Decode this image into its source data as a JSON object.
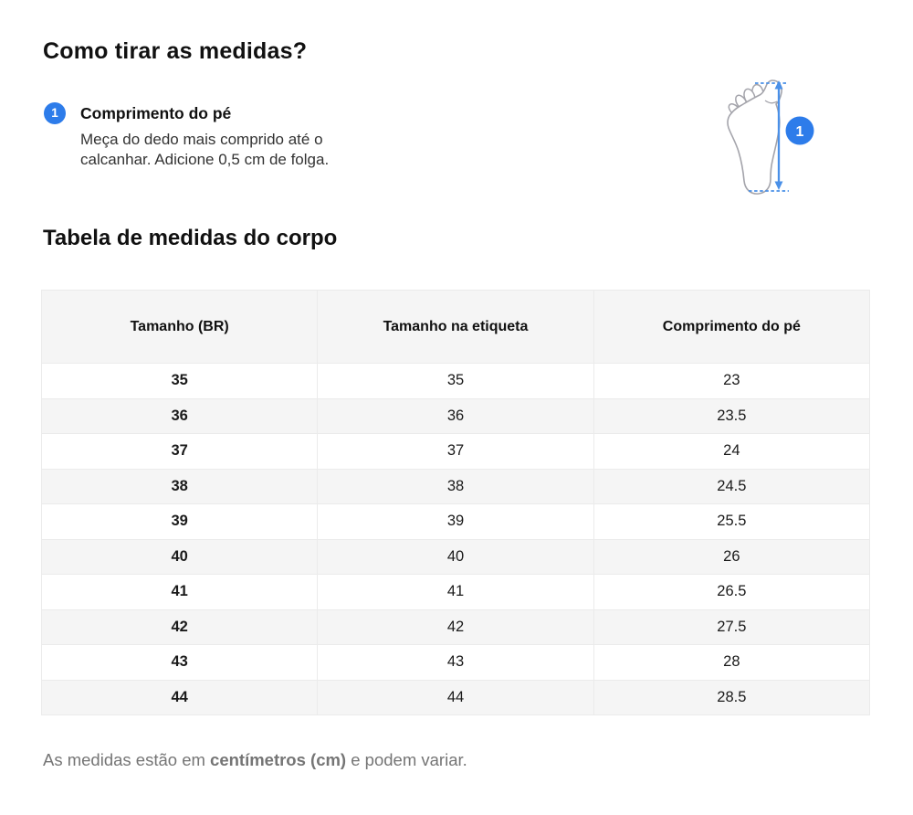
{
  "header": {
    "title": "Como tirar as medidas?"
  },
  "step": {
    "number": "1",
    "title": "Comprimento do pé",
    "description": "Meça do dedo mais comprido até o calcanhar. Adicione 0,5 cm de folga."
  },
  "illustration": {
    "name": "foot-length-diagram",
    "badge_label": "1"
  },
  "table_section": {
    "title": "Tabela de medidas do corpo",
    "columns": [
      "Tamanho (BR)",
      "Tamanho na etiqueta",
      "Comprimento do pé"
    ],
    "rows": [
      [
        "35",
        "35",
        "23"
      ],
      [
        "36",
        "36",
        "23.5"
      ],
      [
        "37",
        "37",
        "24"
      ],
      [
        "38",
        "38",
        "24.5"
      ],
      [
        "39",
        "39",
        "25.5"
      ],
      [
        "40",
        "40",
        "26"
      ],
      [
        "41",
        "41",
        "26.5"
      ],
      [
        "42",
        "42",
        "27.5"
      ],
      [
        "43",
        "43",
        "28"
      ],
      [
        "44",
        "44",
        "28.5"
      ]
    ]
  },
  "note": {
    "prefix": "As medidas estão em ",
    "bold": "centímetros (cm)",
    "suffix": " e podem variar."
  },
  "colors": {
    "accent_blue": "#2d7cea",
    "arrow_blue": "#4a90e8",
    "foot_outline_gray": "#a4a4ab",
    "table_header_bg": "#f5f5f5",
    "muted_text": "#757575"
  }
}
